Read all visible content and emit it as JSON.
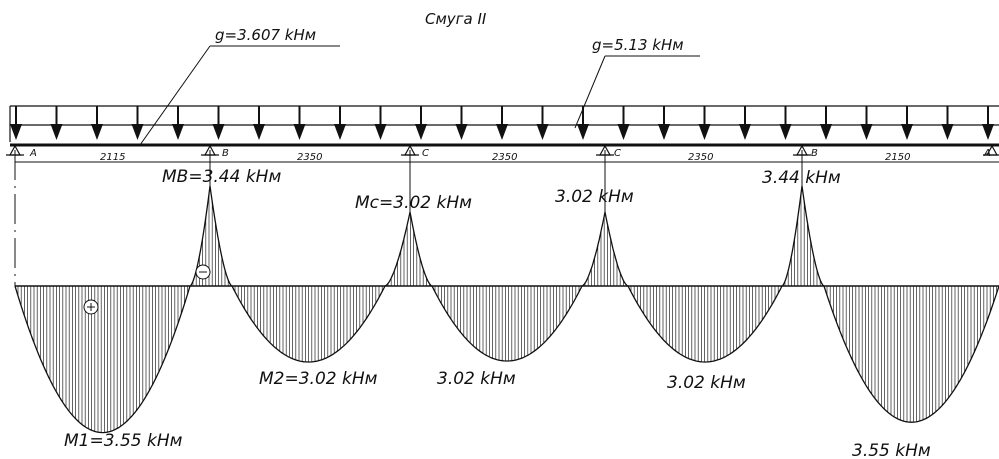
{
  "title": "Смуга II",
  "loads": [
    {
      "label": "g=3.607 kHм"
    },
    {
      "label": "g=5.13 kHм"
    }
  ],
  "supports": [
    "A",
    "B",
    "C",
    "C",
    "B",
    "A"
  ],
  "spans": [
    "2115",
    "2350",
    "2350",
    "2350",
    "2150"
  ],
  "sign_negative": "⊖",
  "sign_positive": "⊕",
  "moment_labels": {
    "MB": "MB=3.44 kHм",
    "Mc": "Mc=3.02 kHм",
    "support_c2": "3.02 kHм",
    "support_b2": "3.44 kHм",
    "M1": "M1=3.55 kHм",
    "M2": "M2=3.02 kHм",
    "span3": "3.02 kHм",
    "span4": "3.02 kHм",
    "span5": "3.55 kHм"
  },
  "colors": {
    "line": "#111111",
    "hatch": "#222222"
  }
}
